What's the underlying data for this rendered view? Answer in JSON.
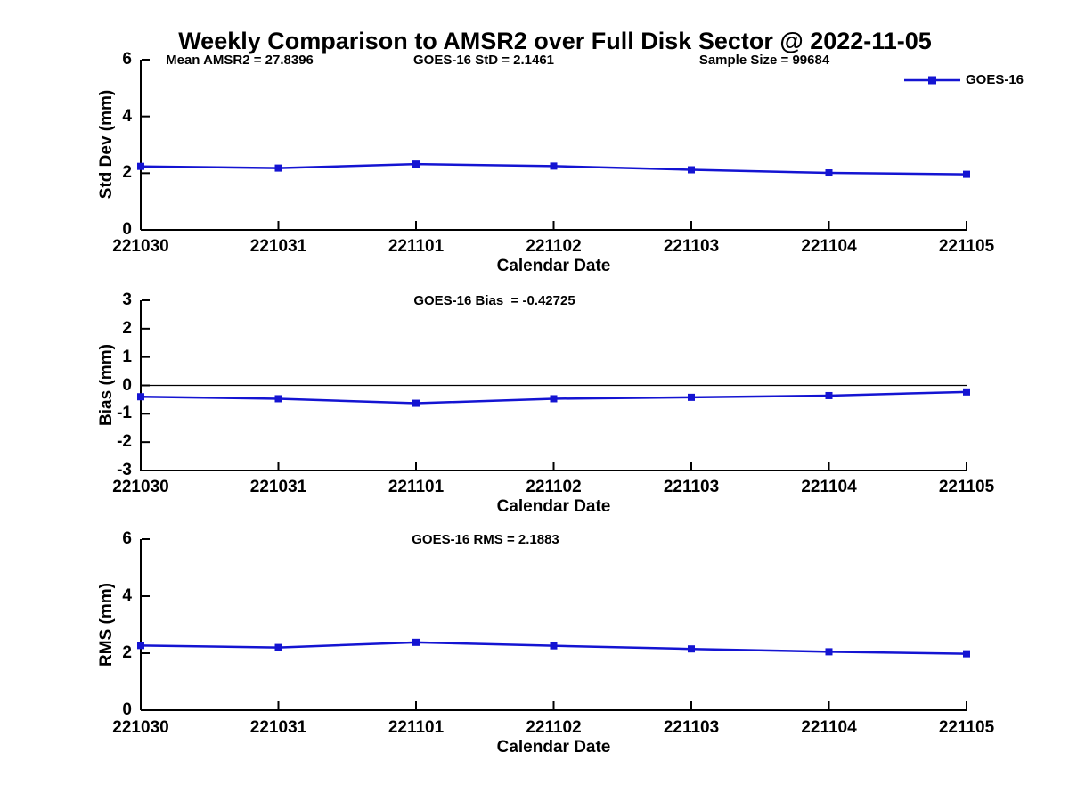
{
  "title": "Weekly Comparison to AMSR2 over Full Disk Sector @ 2022-11-05",
  "colors": {
    "series": "#1414d2",
    "axis": "#000000",
    "text": "#000000",
    "background": "#ffffff"
  },
  "legend": {
    "label": "GOES-16",
    "marker": "square",
    "position": "top-right"
  },
  "x_axis": {
    "label": "Calendar Date",
    "ticks": [
      "221030",
      "221031",
      "221101",
      "221102",
      "221103",
      "221104",
      "221105"
    ]
  },
  "chart_data": [
    {
      "type": "line",
      "panel": "std-dev",
      "ylabel": "Std Dev (mm)",
      "ylim": [
        0,
        6
      ],
      "yticks": [
        0,
        2,
        4,
        6
      ],
      "grid": false,
      "x": [
        "221030",
        "221031",
        "221101",
        "221102",
        "221103",
        "221104",
        "221105"
      ],
      "series": [
        {
          "name": "GOES-16",
          "values": [
            2.24,
            2.18,
            2.32,
            2.25,
            2.12,
            2.01,
            1.96
          ]
        }
      ],
      "annotations": {
        "left": "Mean AMSR2 = 27.8396",
        "center": "GOES-16 StD = 2.1461",
        "right": "Sample Size = 99684"
      }
    },
    {
      "type": "line",
      "panel": "bias",
      "ylabel": "Bias (mm)",
      "ylim": [
        -3,
        3
      ],
      "yticks": [
        -3,
        -2,
        -1,
        0,
        1,
        2,
        3
      ],
      "zero_line": true,
      "grid": false,
      "x": [
        "221030",
        "221031",
        "221101",
        "221102",
        "221103",
        "221104",
        "221105"
      ],
      "series": [
        {
          "name": "GOES-16",
          "values": [
            -0.4,
            -0.47,
            -0.63,
            -0.47,
            -0.42,
            -0.36,
            -0.23
          ]
        }
      ],
      "annotations": {
        "center": "GOES-16 Bias  = -0.42725"
      }
    },
    {
      "type": "line",
      "panel": "rms",
      "ylabel": "RMS (mm)",
      "ylim": [
        0,
        6
      ],
      "yticks": [
        0,
        2,
        4,
        6
      ],
      "grid": false,
      "x": [
        "221030",
        "221031",
        "221101",
        "221102",
        "221103",
        "221104",
        "221105"
      ],
      "series": [
        {
          "name": "GOES-16",
          "values": [
            2.27,
            2.2,
            2.38,
            2.26,
            2.15,
            2.05,
            1.98
          ]
        }
      ],
      "annotations": {
        "center": "GOES-16 RMS = 2.1883"
      }
    }
  ]
}
